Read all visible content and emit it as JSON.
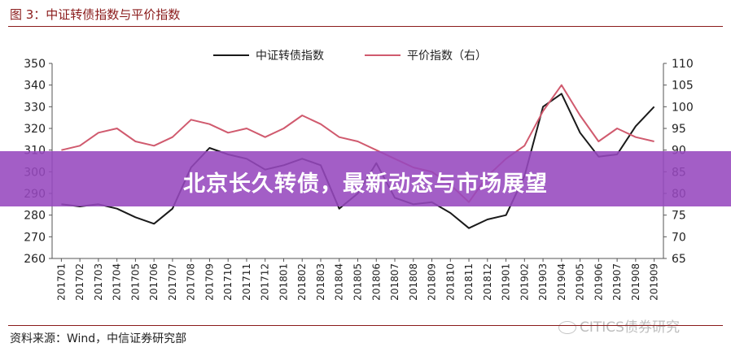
{
  "figure": {
    "title": "图 3：中证转债指数与平价指数",
    "source": "资料来源：Wind，中信证券研究部",
    "watermark": "CITICS债券研究"
  },
  "banner": {
    "text": "北京长久转债，最新动态与市场展望",
    "color": "#9648be"
  },
  "chart_data": {
    "type": "line",
    "title": "图 3：中证转债指数与平价指数",
    "legend": "top-center",
    "grid": false,
    "x_tick_labels": [
      "201701",
      "201702",
      "201703",
      "201704",
      "201705",
      "201706",
      "201707",
      "201708",
      "201709",
      "201710",
      "201711",
      "201712",
      "201801",
      "201802",
      "201803",
      "201804",
      "201805",
      "201806",
      "201807",
      "201808",
      "201809",
      "201810",
      "201811",
      "201812",
      "201901",
      "201902",
      "201903",
      "201904",
      "201905",
      "201906",
      "201907",
      "201908",
      "201909"
    ],
    "y_left": {
      "min": 260,
      "max": 350,
      "ticks": [
        260,
        270,
        280,
        290,
        300,
        310,
        320,
        330,
        340,
        350
      ]
    },
    "y_right": {
      "min": 65,
      "max": 110,
      "ticks": [
        65,
        70,
        75,
        80,
        85,
        90,
        95,
        100,
        105,
        110
      ]
    },
    "series": [
      {
        "name": "中证转债指数",
        "axis": "left",
        "color": "#1a1a1a",
        "values": [
          285,
          284,
          285,
          283,
          279,
          276,
          283,
          302,
          311,
          308,
          306,
          301,
          303,
          306,
          303,
          283,
          290,
          304,
          288,
          285,
          286,
          281,
          274,
          278,
          280,
          298,
          330,
          336,
          318,
          307,
          308,
          321,
          330
        ]
      },
      {
        "name": "平价指数（右）",
        "axis": "right",
        "color": "#d05a6e",
        "values": [
          90,
          91,
          94,
          95,
          92,
          91,
          93,
          97,
          96,
          94,
          95,
          93,
          95,
          98,
          96,
          93,
          92,
          90,
          88,
          86,
          85,
          82,
          78,
          84,
          88,
          91,
          99,
          105,
          98,
          92,
          95,
          93,
          92
        ]
      }
    ]
  }
}
